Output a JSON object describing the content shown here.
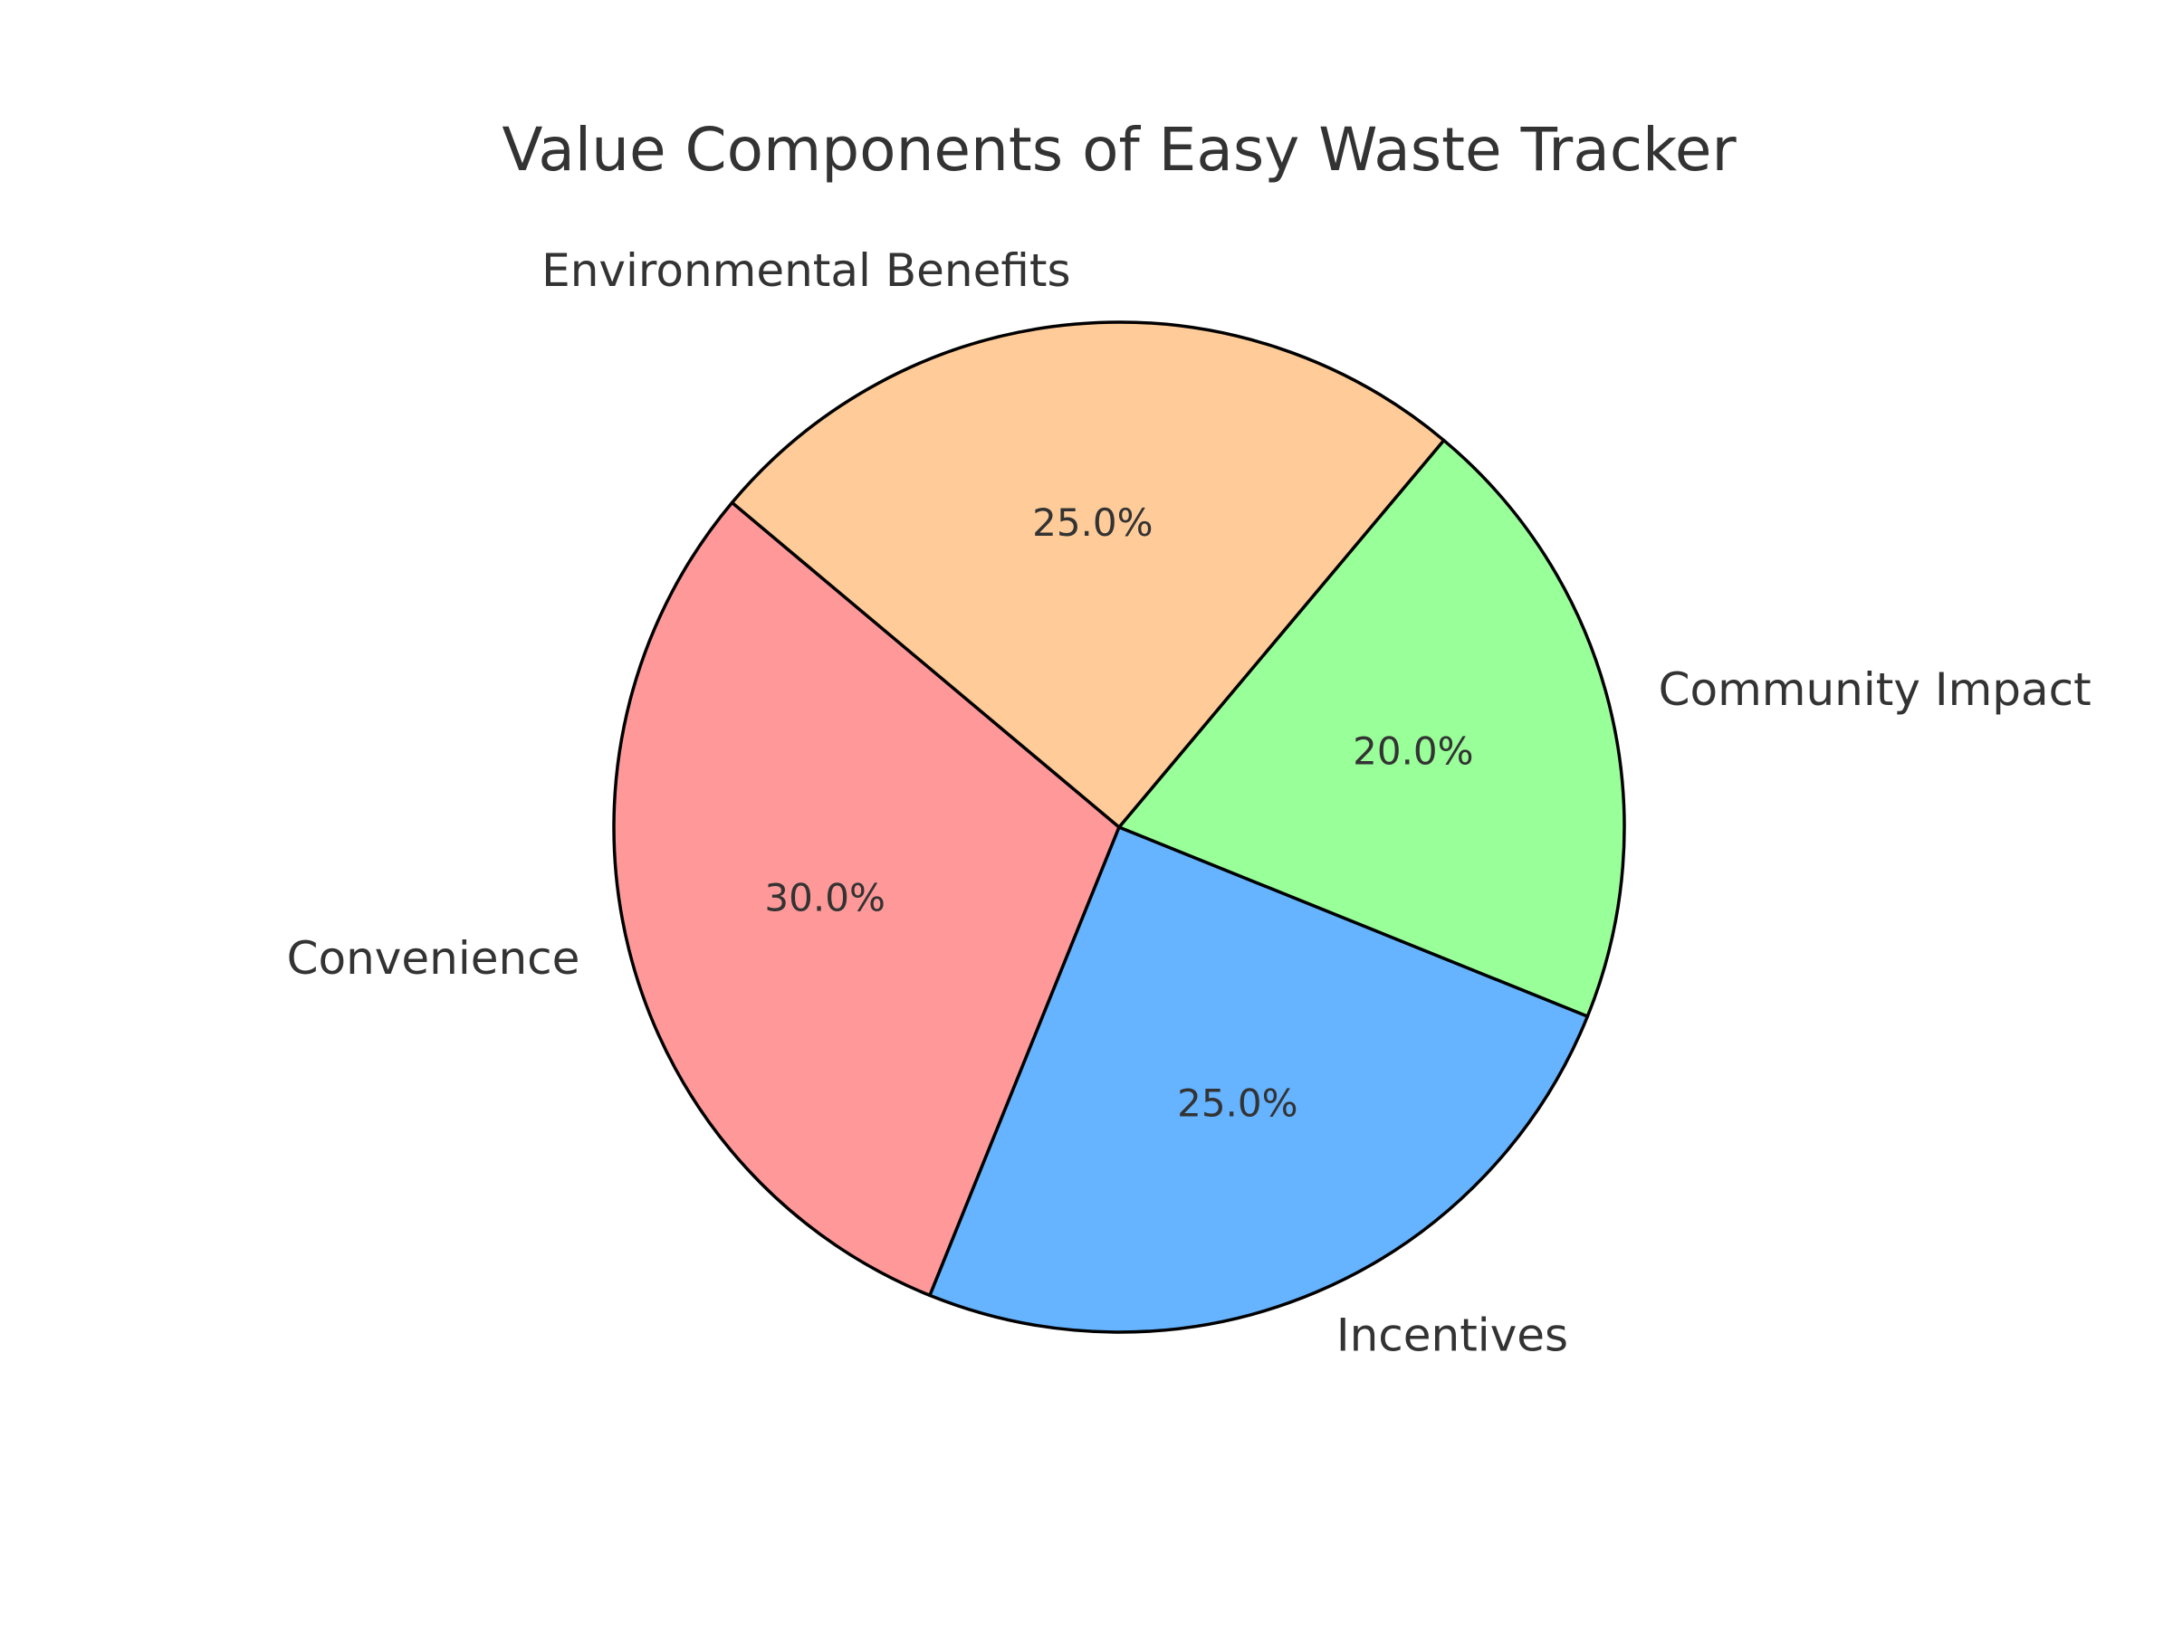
{
  "chart_data": {
    "type": "pie",
    "title": "Value Components of Easy Waste Tracker",
    "start_angle_deg": 140,
    "direction": "counterclockwise",
    "slices": [
      {
        "label": "Convenience",
        "value": 30.0,
        "pct_label": "30.0%",
        "color": "#FF9999"
      },
      {
        "label": "Incentives",
        "value": 25.0,
        "pct_label": "25.0%",
        "color": "#66B3FF"
      },
      {
        "label": "Community Impact",
        "value": 20.0,
        "pct_label": "20.0%",
        "color": "#99FF99"
      },
      {
        "label": "Environmental Benefits",
        "value": 25.0,
        "pct_label": "25.0%",
        "color": "#FFCC99"
      }
    ]
  }
}
